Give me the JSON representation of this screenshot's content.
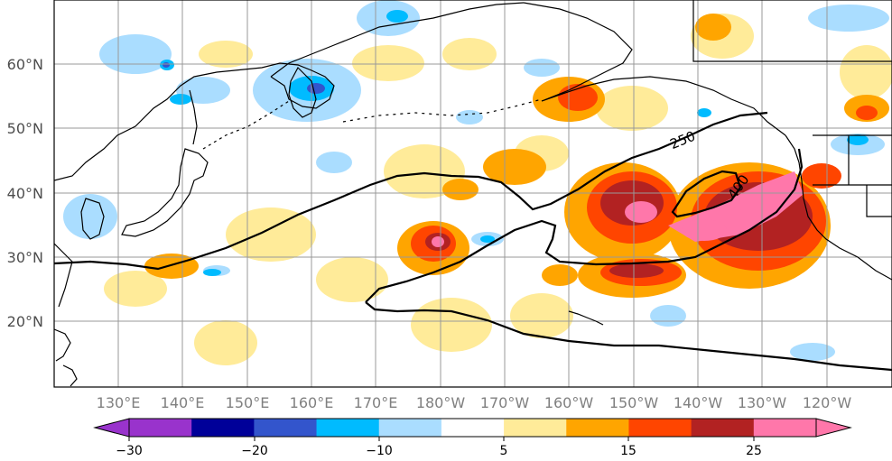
{
  "map": {
    "region": "North Pacific",
    "latitude_labels": [
      "60°N",
      "50°N",
      "40°N",
      "30°N",
      "20°N"
    ],
    "longitude_labels": [
      "130°E",
      "140°E",
      "150°E",
      "160°E",
      "170°E",
      "180°W",
      "170°W",
      "160°W",
      "150°W",
      "140°W",
      "130°W",
      "120°W"
    ],
    "contour_labels": [
      "250",
      "400"
    ]
  },
  "colorbar": {
    "tick_labels": [
      "−30",
      "−20",
      "−10",
      "5",
      "15",
      "25"
    ],
    "colors": [
      "#9933cc",
      "#000099",
      "#3355cc",
      "#00bbff",
      "#aaddff",
      "#ffffff",
      "#ffeb99",
      "#ffa500",
      "#ff4500",
      "#b22222",
      "#ff77aa"
    ],
    "ticks": [
      -30,
      -20,
      -10,
      5,
      15,
      25
    ],
    "range": [
      -30,
      30
    ]
  },
  "colors": {
    "land_line": "#000000",
    "grid": "#999999",
    "frame": "#000000"
  }
}
